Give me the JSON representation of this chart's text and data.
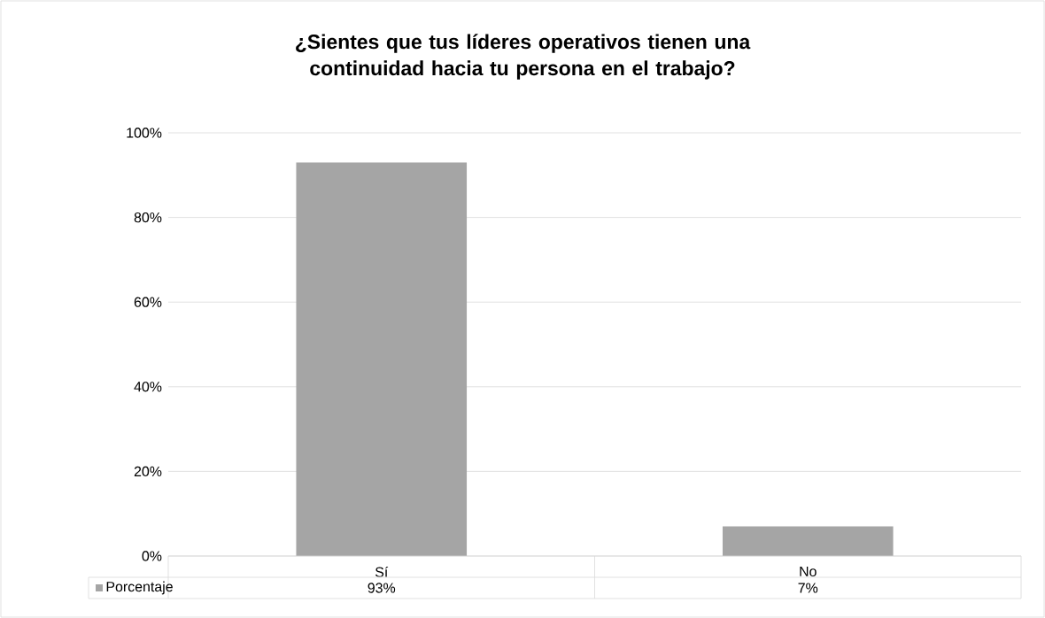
{
  "chart_data": {
    "type": "bar",
    "title": "¿Sientes que tus líderes operativos tienen una continuidad hacia tu persona en el trabajo?",
    "categories": [
      "Sí",
      "No"
    ],
    "series": [
      {
        "name": "Porcentaje",
        "color": "#a5a5a5",
        "values": [
          93,
          7
        ],
        "value_labels": [
          "93%",
          "7%"
        ]
      }
    ],
    "ylim": [
      0,
      100
    ],
    "yticks": [
      {
        "value": 0,
        "label": "0%"
      },
      {
        "value": 20,
        "label": "20%"
      },
      {
        "value": 40,
        "label": "40%"
      },
      {
        "value": 60,
        "label": "60%"
      },
      {
        "value": 80,
        "label": "80%"
      },
      {
        "value": 100,
        "label": "100%"
      }
    ],
    "grid": "y",
    "legend": "bottom"
  }
}
